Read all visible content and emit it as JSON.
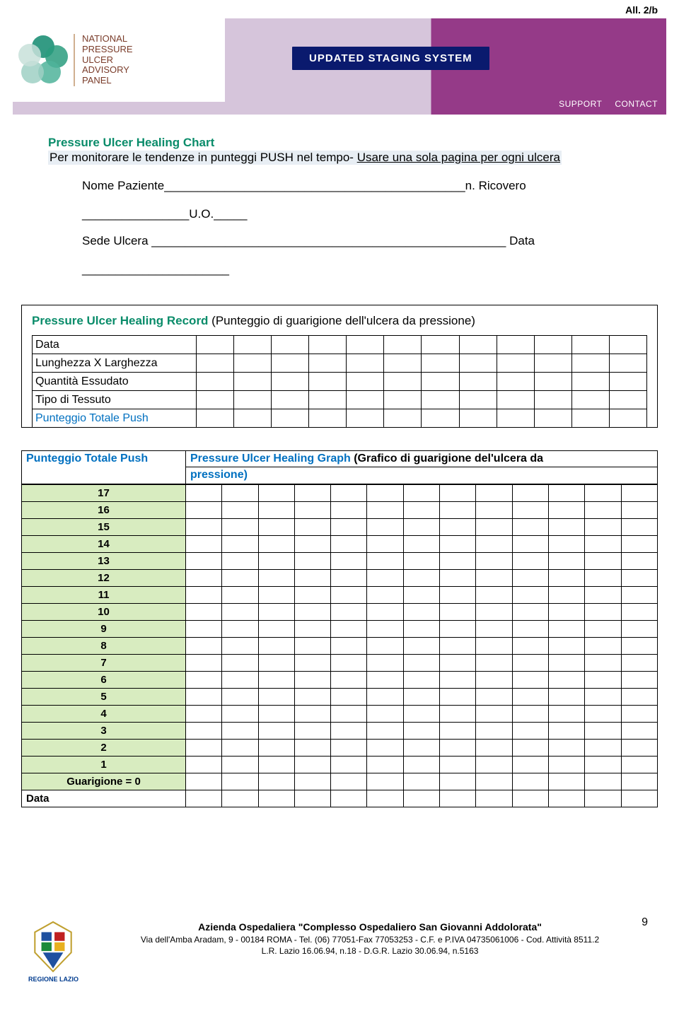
{
  "header_right": "All. 2/b",
  "logo_lines": [
    "NATIONAL",
    "PRESSURE",
    "ULCER",
    "ADVISORY",
    "PANEL"
  ],
  "uss_badge": "UPDATED STAGING SYSTEM",
  "banner_links": [
    "SUPPORT",
    "CONTACT"
  ],
  "title": "Pressure Ulcer Healing Chart",
  "subtitle_a": "Per monitorare le tendenze in punteggi PUSH nel tempo- ",
  "subtitle_b": "Usare una sola pagina per ogni ulcera",
  "field_nome": "Nome Paziente_____________________________________________n. Ricovero",
  "field_uo": "________________U.O._____",
  "field_sede": "Sede Ulcera _____________________________________________________ Data",
  "field_blank": "______________________",
  "record_title_lbl": "Pressure Ulcer Healing Record",
  "record_title_rest": "  (Punteggio di guarigione dell'ulcera da pressione)",
  "record_rows": [
    "Data",
    "Lunghezza X Larghezza",
    "Quantità Essudato",
    "Tipo di Tessuto",
    "Punteggio Totale Push"
  ],
  "datacols": 12,
  "graph_left": "Punteggio Totale Push",
  "graph_right_a": "Pressure Ulcer Healing Graph ",
  "graph_right_b": "(Grafico di guarigione del'ulcera da",
  "graph_right_c": "pressione)",
  "graph_values": [
    "17",
    "16",
    "15",
    "14",
    "13",
    "12",
    "11",
    "10",
    "9",
    "8",
    "7",
    "6",
    "5",
    "4",
    "3",
    "2",
    "1",
    "Guarigione = 0",
    "Data"
  ],
  "graph_cols": 13,
  "footer": {
    "line1": "Azienda Ospedaliera \"Complesso Ospedaliero San Giovanni  Addolorata\"",
    "line2": "Via dell'Amba Aradam, 9 - 00184 ROMA - Tel. (06) 77051-Fax 77053253 - C.F. e P.IVA 04735061006 - Cod. Attività 8511.2",
    "line3": "L.R. Lazio 16.06.94, n.18 - D.G.R. Lazio 30.06.94, n.5163"
  },
  "page_num": "9",
  "regione": "REGIONE LAZIO",
  "colors": {
    "teal": "#0a8c6a",
    "blue_text": "#0070c0",
    "green_bg": "#d8ecc0",
    "banner_lav": "#d6c5db",
    "banner_purple": "#953a88",
    "badge_navy": "#0a1a6e"
  }
}
